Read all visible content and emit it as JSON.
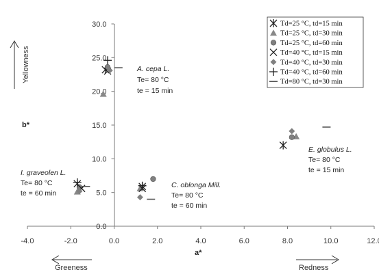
{
  "chart_data": {
    "type": "scatter",
    "xlabel": "a*",
    "ylabel": "b*",
    "xlim": [
      -4.0,
      12.0
    ],
    "ylim": [
      0.0,
      30.0
    ],
    "xticks": [
      "-4.0",
      "-2.0",
      "0.0",
      "2.0",
      "4.0",
      "6.0",
      "8.0",
      "10.0",
      "12.0"
    ],
    "yticks": [
      "0.0",
      "5.0",
      "10.0",
      "15.0",
      "20.0",
      "25.0",
      "30.0"
    ],
    "grid": false,
    "legend_position": "top-right",
    "series": [
      {
        "name": "Td=25 °C, td=15 min",
        "marker": "star",
        "color": "#222222",
        "points": [
          [
            -0.4,
            23.2
          ],
          [
            1.3,
            5.9
          ],
          [
            7.8,
            12.0
          ],
          [
            -1.7,
            6.3
          ]
        ]
      },
      {
        "name": "Td=25 °C, td=30 min",
        "marker": "triangle",
        "color": "#888888",
        "points": [
          [
            -0.5,
            19.6
          ],
          [
            1.2,
            5.6
          ],
          [
            8.4,
            13.3
          ],
          [
            -1.7,
            5.1
          ]
        ]
      },
      {
        "name": "Td=25 °C, td=60 min",
        "marker": "circle",
        "color": "#808080",
        "points": [
          [
            -0.3,
            23.6
          ],
          [
            1.8,
            7.0
          ],
          [
            8.2,
            13.2
          ],
          [
            -1.6,
            5.8
          ]
        ]
      },
      {
        "name": "Td=40 °C, td=15 min",
        "marker": "x",
        "color": "#222222",
        "points": [
          [
            -0.3,
            23.0
          ],
          [
            1.3,
            5.6
          ],
          [
            -1.5,
            5.6
          ]
        ]
      },
      {
        "name": "Td=40 °C, td=30 min",
        "marker": "diamond",
        "color": "#808080",
        "points": [
          [
            -0.2,
            23.1
          ],
          [
            1.2,
            4.3
          ],
          [
            8.2,
            14.1
          ],
          [
            -1.6,
            5.2
          ]
        ]
      },
      {
        "name": "Td=40 °C, td=60 min",
        "marker": "plus",
        "color": "#222222",
        "points": [
          [
            -0.3,
            24.6
          ],
          [
            1.3,
            6.0
          ],
          [
            -1.7,
            6.5
          ]
        ]
      },
      {
        "name": "Td=80 °C, td=30 min",
        "marker": "dash",
        "color": "#555555",
        "points": [
          [
            0.2,
            23.5
          ],
          [
            1.7,
            4.0
          ],
          [
            9.8,
            14.7
          ],
          [
            -1.3,
            5.9
          ]
        ]
      }
    ],
    "annotations": [
      {
        "lines": [
          "A. cepa L.",
          "Te= 80 °C",
          "te = 15 min"
        ]
      },
      {
        "lines": [
          "C. oblonga Mill.",
          "Te= 80 °C",
          "te = 60 min"
        ]
      },
      {
        "lines": [
          "E. globulus L.",
          "Te= 80 °C",
          "te = 15 min"
        ]
      },
      {
        "lines": [
          "I. graveolen L.",
          "Te= 80 °C",
          "te = 60 min"
        ]
      }
    ],
    "directions": {
      "yellowness": "Yellowness",
      "greeness": "Greeness",
      "redness": "Redness"
    }
  }
}
